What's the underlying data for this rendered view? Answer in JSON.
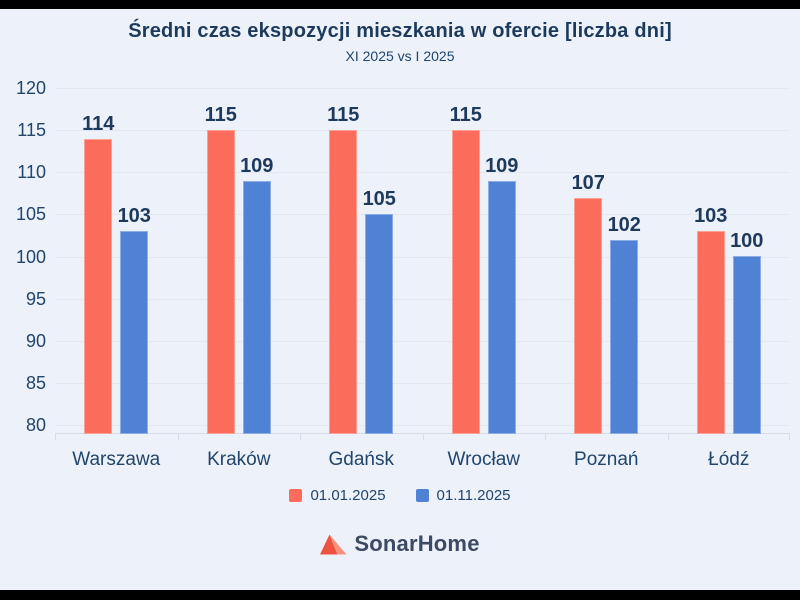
{
  "title": "Średni czas ekspozycji mieszkania w ofercie [liczba dni]",
  "subtitle": "XI 2025 vs I 2025",
  "chart_data": {
    "type": "bar",
    "title": "Średni czas ekspozycji mieszkania w ofercie [liczba dni]",
    "subtitle": "XI 2025 vs I 2025",
    "categories": [
      "Warszawa",
      "Kraków",
      "Gdańsk",
      "Wrocław",
      "Poznań",
      "Łódź"
    ],
    "series": [
      {
        "name": "01.01.2025",
        "color": "#fb6c5b",
        "values": [
          114,
          115,
          115,
          115,
          107,
          103
        ]
      },
      {
        "name": "01.11.2025",
        "color": "#4f81d4",
        "values": [
          103,
          109,
          105,
          109,
          102,
          100
        ]
      }
    ],
    "xlabel": "",
    "ylabel": "",
    "ylim": [
      80,
      120
    ],
    "yticks": [
      80,
      85,
      90,
      95,
      100,
      105,
      110,
      115,
      120
    ],
    "grid": true,
    "legend_position": "bottom"
  },
  "footer": {
    "brand": "SonarHome"
  },
  "colors": {
    "background": "#edf1f9",
    "frame": "#000000",
    "title_text": "#1d3a5c",
    "axis_text": "#21456b",
    "gridline": "#e2e7f1",
    "series_red": "#fb6c5b",
    "series_blue": "#4f81d4",
    "logo_dark": "#ee5340",
    "logo_light": "#f7917f"
  }
}
